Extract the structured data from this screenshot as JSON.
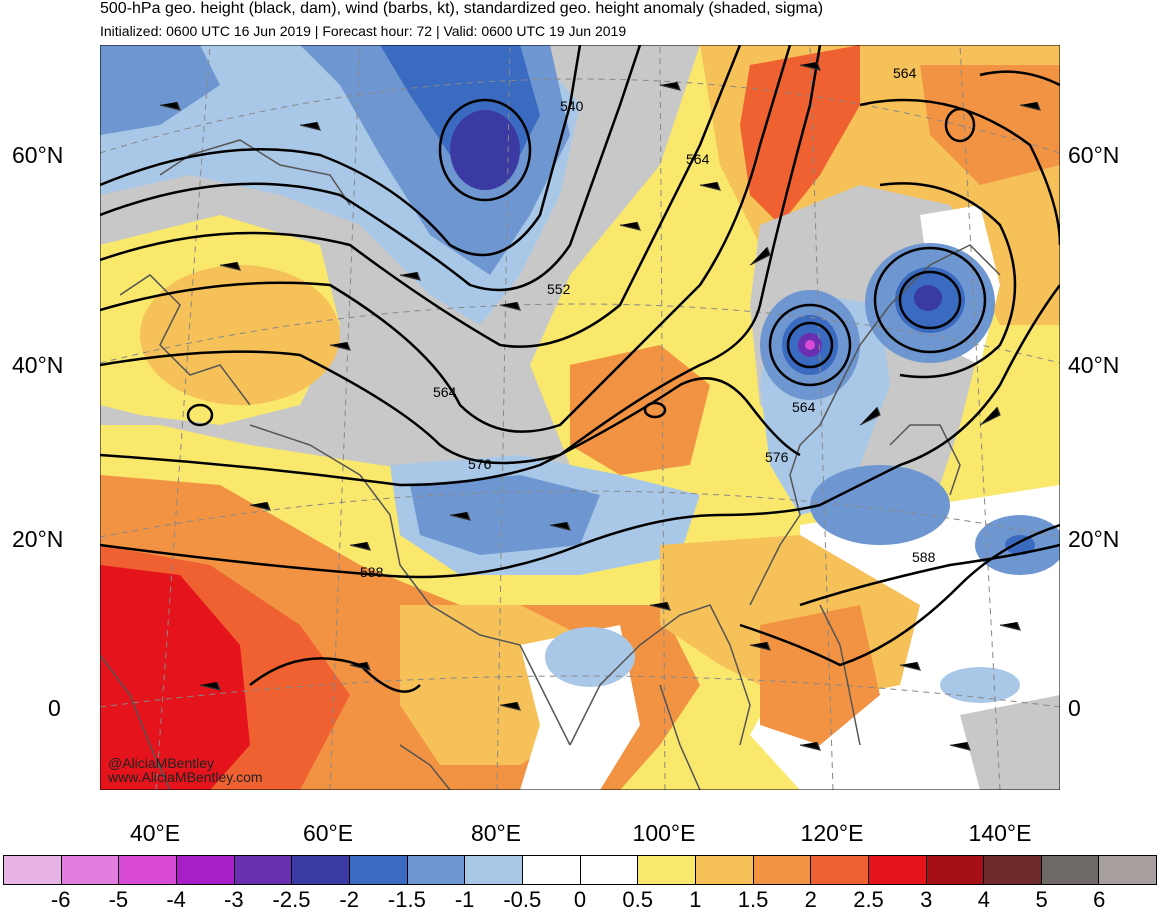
{
  "title": "500-hPa geo. height (black, dam), wind (barbs, kt), standardized geo. height anomaly (shaded, sigma)",
  "subtitle": "Initialized: 0600 UTC 16 Jun 2019 | Forecast hour: 72 | Valid: 0600 UTC 19 Jun 2019",
  "lat_labels": [
    "60°N",
    "40°N",
    "20°N",
    "0"
  ],
  "lon_labels": [
    "40°E",
    "60°E",
    "80°E",
    "100°E",
    "120°E",
    "140°E"
  ],
  "contour_labels": [
    "540",
    "552",
    "564",
    "564",
    "564",
    "564",
    "576",
    "576",
    "588",
    "588"
  ],
  "credit": {
    "handle": "@AliciaMBentley",
    "site": "www.AliciaMBentley.com"
  },
  "colorbar": {
    "labels": [
      "-6",
      "-5",
      "-4",
      "-3",
      "-2.5",
      "-2",
      "-1.5",
      "-1",
      "-0.5",
      "0",
      "0.5",
      "1",
      "1.5",
      "2",
      "2.5",
      "3",
      "4",
      "5",
      "6"
    ],
    "colors": [
      "#e8b4e6",
      "#e27ee0",
      "#d94ad6",
      "#a81fc7",
      "#6a2fb0",
      "#3b3aa3",
      "#3a6bc1",
      "#6e96d0",
      "#a9c8e7",
      "#ffffff",
      "#ffffff",
      "#f9e86c",
      "#f5c158",
      "#f29343",
      "#ef6131",
      "#e5141c",
      "#a50f15",
      "#6f2a2c",
      "#6e6867",
      "#a69f9e"
    ]
  },
  "legend_colors": {
    "land_outline": "#555555",
    "contour": "#000000",
    "neutral_gray": "#c8c8c8"
  }
}
